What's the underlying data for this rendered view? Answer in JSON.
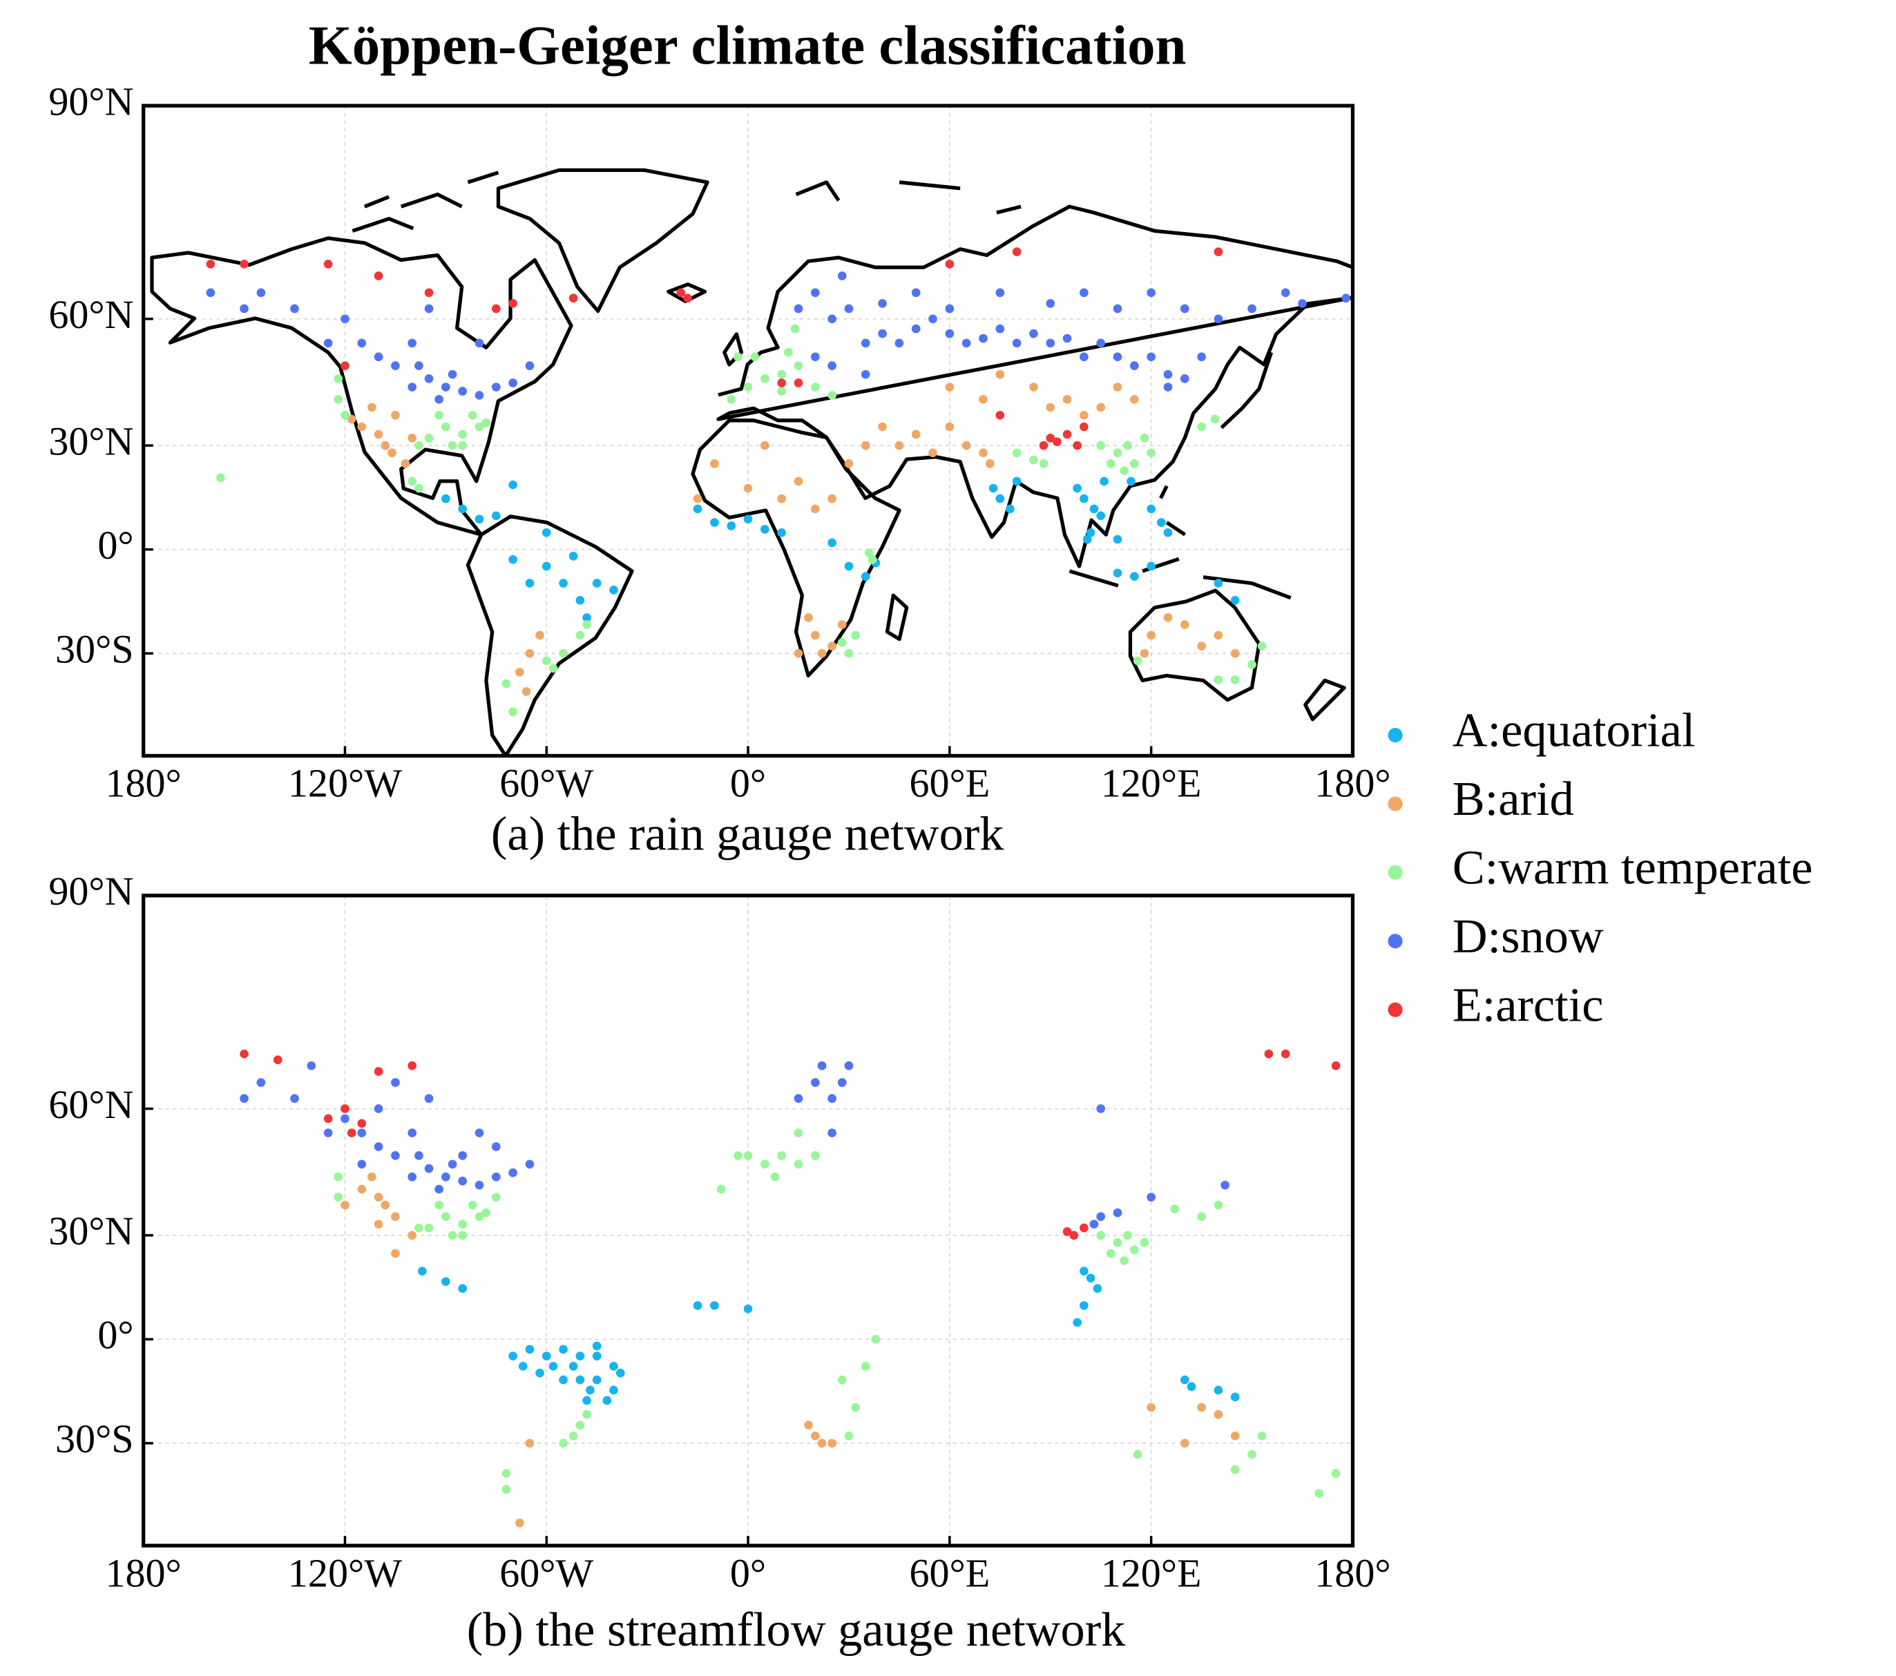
{
  "chart_data": [
    {
      "type": "scatter",
      "title": "Köppen-Geiger climate classification",
      "caption": "(a) the rain gauge network",
      "projection": "miller",
      "grid": true,
      "xlim": [
        -180,
        180
      ],
      "ylim": [
        -55,
        90
      ],
      "xticks": [
        {
          "value": -180,
          "label": "180°"
        },
        {
          "value": -120,
          "label": "120°W"
        },
        {
          "value": -60,
          "label": "60°W"
        },
        {
          "value": 0,
          "label": "0°"
        },
        {
          "value": 60,
          "label": "60°E"
        },
        {
          "value": 120,
          "label": "120°E"
        },
        {
          "value": 180,
          "label": "180°"
        }
      ],
      "yticks": [
        {
          "value": 90,
          "label": "90°N"
        },
        {
          "value": 60,
          "label": "60°N"
        },
        {
          "value": 30,
          "label": "30°N"
        },
        {
          "value": 0,
          "label": "0°"
        },
        {
          "value": -30,
          "label": "30°S"
        }
      ],
      "series": [
        {
          "name": "A:equatorial",
          "color": "#17b3ee",
          "x": [
            -90,
            -85,
            -80,
            -75,
            -60,
            -55,
            -50,
            -45,
            -48,
            -40,
            -65,
            -70,
            -60,
            -52,
            -70,
            -10,
            -5,
            0,
            5,
            10,
            -15,
            30,
            35,
            38,
            25,
            75,
            78,
            80,
            73,
            100,
            103,
            98,
            105,
            102,
            110,
            115,
            120,
            123,
            125,
            110,
            114,
            106,
            101,
            120,
            140,
            145
          ],
          "y": [
            15,
            12,
            9,
            10,
            -5,
            -10,
            -15,
            -10,
            -20,
            -12,
            -10,
            -3,
            5,
            -2,
            19,
            8,
            7,
            9,
            6,
            5,
            12,
            -5,
            -8,
            -4,
            2,
            15,
            12,
            20,
            18,
            15,
            12,
            18,
            10,
            5,
            -7,
            -8,
            12,
            8,
            5,
            3,
            20,
            20,
            3,
            -5,
            -10,
            -15
          ]
        },
        {
          "name": "B:arid",
          "color": "#f0a765",
          "x": [
            -115,
            -110,
            -105,
            -112,
            -100,
            -118,
            -108,
            -102,
            -106,
            -65,
            -68,
            -66,
            -62,
            -10,
            0,
            10,
            15,
            25,
            30,
            5,
            -15,
            20,
            35,
            45,
            50,
            55,
            40,
            60,
            65,
            60,
            70,
            75,
            85,
            95,
            105,
            110,
            115,
            100,
            90,
            72,
            70,
            20,
            25,
            18,
            28,
            15,
            22,
            120,
            130,
            135,
            140,
            125,
            145,
            118
          ],
          "y": [
            35,
            33,
            38,
            40,
            32,
            37,
            30,
            25,
            28,
            -30,
            -35,
            -40,
            -25,
            25,
            18,
            15,
            20,
            15,
            25,
            30,
            15,
            12,
            30,
            30,
            33,
            28,
            35,
            35,
            30,
            45,
            42,
            48,
            45,
            42,
            40,
            45,
            42,
            38,
            40,
            25,
            28,
            -25,
            -28,
            -20,
            -22,
            -30,
            -30,
            -25,
            -22,
            -28,
            -25,
            -20,
            -30,
            -30
          ]
        },
        {
          "name": "C:warm temperate",
          "color": "#98f598",
          "x": [
            -90,
            -85,
            -80,
            -95,
            -88,
            -82,
            -78,
            -92,
            -98,
            -85,
            -122,
            -122,
            -120,
            -100,
            -98,
            -50,
            -55,
            -58,
            -48,
            -60,
            -72,
            -70,
            0,
            5,
            10,
            15,
            -5,
            10,
            20,
            -3,
            2,
            12,
            25,
            14,
            110,
            115,
            113,
            105,
            118,
            120,
            108,
            112,
            80,
            85,
            88,
            135,
            139,
            145,
            150,
            153,
            140,
            116,
            30,
            28,
            32,
            36,
            37,
            -157
          ],
          "y": [
            35,
            33,
            35,
            32,
            30,
            38,
            36,
            38,
            30,
            30,
            42,
            47,
            38,
            20,
            18,
            -25,
            -30,
            -34,
            -22,
            -32,
            -38,
            -45,
            45,
            47,
            48,
            50,
            42,
            44,
            45,
            52,
            52,
            53,
            43,
            58,
            28,
            25,
            30,
            30,
            32,
            28,
            25,
            23,
            28,
            26,
            25,
            35,
            37,
            -37,
            -33,
            -28,
            -37,
            -32,
            -30,
            -27,
            -25,
            -1,
            -3,
            21
          ]
        },
        {
          "name": "D:snow",
          "color": "#4f74f2",
          "x": [
            -100,
            -95,
            -90,
            -85,
            -80,
            -75,
            -70,
            -105,
            -110,
            -100,
            -115,
            -120,
            -135,
            -150,
            -145,
            -160,
            -95,
            -80,
            -65,
            -88,
            -92,
            -98,
            -125,
            25,
            30,
            20,
            15,
            28,
            35,
            40,
            45,
            50,
            55,
            60,
            65,
            70,
            75,
            80,
            85,
            90,
            95,
            100,
            105,
            110,
            115,
            120,
            125,
            130,
            135,
            125,
            140,
            150,
            160,
            165,
            178,
            100,
            110,
            120,
            130,
            90,
            75,
            60,
            50,
            40,
            35,
            25,
            20
          ],
          "y": [
            45,
            47,
            45,
            44,
            43,
            45,
            46,
            50,
            52,
            55,
            55,
            60,
            62,
            62,
            65,
            65,
            62,
            55,
            50,
            48,
            42,
            50,
            55,
            60,
            62,
            65,
            62,
            68,
            55,
            57,
            55,
            58,
            60,
            57,
            55,
            56,
            58,
            55,
            57,
            55,
            56,
            52,
            55,
            52,
            50,
            52,
            48,
            47,
            52,
            45,
            60,
            62,
            65,
            63,
            64,
            65,
            62,
            65,
            62,
            63,
            65,
            62,
            65,
            63,
            48,
            50,
            52
          ]
        },
        {
          "name": "E:arctic",
          "color": "#f23535",
          "x": [
            -160,
            -150,
            -125,
            -110,
            -95,
            -75,
            -70,
            -52,
            -20,
            -18,
            60,
            80,
            140,
            90,
            95,
            88,
            100,
            98,
            92,
            15,
            10,
            -120,
            75
          ],
          "y": [
            70,
            70,
            70,
            68,
            65,
            62,
            63,
            64,
            65,
            64,
            70,
            72,
            72,
            32,
            33,
            30,
            35,
            30,
            31,
            46,
            46,
            50,
            38
          ]
        }
      ]
    },
    {
      "type": "scatter",
      "caption": "(b) the streamflow gauge network",
      "projection": "miller",
      "grid": true,
      "xlim": [
        -180,
        180
      ],
      "ylim": [
        -55,
        90
      ],
      "xticks": [
        {
          "value": -180,
          "label": "180°"
        },
        {
          "value": -120,
          "label": "120°W"
        },
        {
          "value": -60,
          "label": "60°W"
        },
        {
          "value": 0,
          "label": "0°"
        },
        {
          "value": 60,
          "label": "60°E"
        },
        {
          "value": 120,
          "label": "120°E"
        },
        {
          "value": 180,
          "label": "180°"
        }
      ],
      "yticks": [
        {
          "value": 90,
          "label": "90°N"
        },
        {
          "value": 60,
          "label": "60°N"
        },
        {
          "value": 30,
          "label": "30°N"
        },
        {
          "value": 0,
          "label": "0°"
        },
        {
          "value": -30,
          "label": "30°S"
        }
      ],
      "series": [
        {
          "color": "#17b3ee",
          "x": [
            -70,
            -65,
            -60,
            -55,
            -50,
            -45,
            -40,
            -62,
            -55,
            -50,
            -45,
            -40,
            -48,
            -52,
            -58,
            -45,
            -38,
            -42,
            -47,
            -67,
            -97,
            -90,
            -85,
            -10,
            0,
            -15,
            100,
            102,
            100,
            104,
            98,
            132,
            140,
            145,
            130
          ],
          "y": [
            -5,
            -3,
            -5,
            -3,
            -5,
            -5,
            -8,
            -10,
            -12,
            -12,
            -12,
            -15,
            -18,
            -8,
            -8,
            -2,
            -10,
            -18,
            -15,
            -8,
            20,
            17,
            15,
            10,
            9,
            10,
            20,
            18,
            10,
            15,
            5,
            -14,
            -15,
            -17,
            -12
          ]
        },
        {
          "color": "#f0a765",
          "x": [
            -115,
            -110,
            -112,
            -108,
            -105,
            -120,
            -100,
            -110,
            -105,
            20,
            22,
            25,
            18,
            135,
            140,
            145,
            130,
            120,
            -65,
            -68
          ],
          "y": [
            42,
            40,
            45,
            38,
            35,
            38,
            30,
            33,
            25,
            -28,
            -30,
            -30,
            -25,
            -20,
            -22,
            -28,
            -30,
            -20,
            -30,
            -50
          ]
        },
        {
          "color": "#98f598",
          "x": [
            -90,
            -85,
            -80,
            -95,
            -88,
            -82,
            -78,
            -92,
            -98,
            -85,
            -75,
            -122,
            -122,
            -50,
            -52,
            -55,
            -48,
            -72,
            -72,
            5,
            10,
            15,
            0,
            8,
            20,
            -3,
            15,
            -8,
            110,
            113,
            115,
            108,
            112,
            118,
            105,
            127,
            140,
            135,
            145,
            150,
            153,
            116,
            175,
            170,
            30,
            32,
            28,
            35,
            38
          ],
          "y": [
            35,
            33,
            35,
            32,
            30,
            38,
            36,
            38,
            32,
            30,
            40,
            45,
            40,
            -25,
            -28,
            -30,
            -22,
            -38,
            -42,
            48,
            50,
            48,
            50,
            45,
            50,
            50,
            55,
            42,
            28,
            30,
            26,
            25,
            23,
            28,
            30,
            37,
            38,
            35,
            -37,
            -33,
            -28,
            -33,
            -38,
            -43,
            -28,
            -20,
            -12,
            -8,
            0
          ]
        },
        {
          "color": "#4f74f2",
          "x": [
            -100,
            -95,
            -90,
            -85,
            -80,
            -75,
            -70,
            -105,
            -110,
            -100,
            -115,
            -120,
            -135,
            -150,
            -145,
            -95,
            -80,
            -65,
            -88,
            -92,
            -98,
            -125,
            -115,
            -85,
            -75,
            -110,
            -105,
            -130,
            20,
            25,
            28,
            15,
            30,
            22,
            25,
            105,
            110,
            120,
            103,
            142,
            105
          ],
          "y": [
            45,
            47,
            45,
            44,
            43,
            45,
            46,
            50,
            52,
            55,
            55,
            58,
            62,
            62,
            65,
            62,
            55,
            48,
            48,
            42,
            50,
            55,
            48,
            50,
            52,
            60,
            65,
            68,
            65,
            62,
            65,
            62,
            68,
            68,
            55,
            35,
            36,
            40,
            33,
            43,
            60
          ]
        },
        {
          "color": "#f23535",
          "x": [
            -150,
            -140,
            -120,
            -118,
            -125,
            -115,
            -110,
            -100,
            100,
            95,
            97,
            155,
            160,
            175
          ],
          "y": [
            70,
            69,
            60,
            55,
            58,
            57,
            67,
            68,
            32,
            31,
            30,
            70,
            70,
            68
          ]
        }
      ]
    }
  ]
}
